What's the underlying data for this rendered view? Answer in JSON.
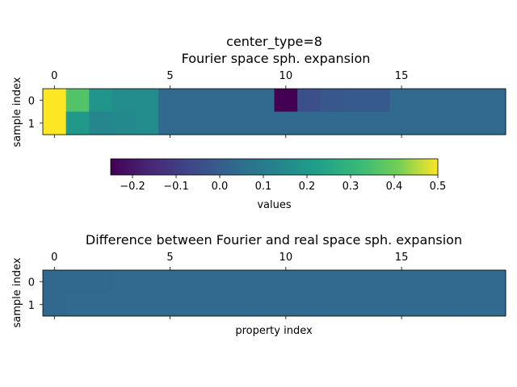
{
  "figure": {
    "title_line1": "center_type=8",
    "title_line2": "Fourier space sph. expansion"
  },
  "chart_data": [
    {
      "type": "heatmap",
      "title": "center_type=8\nFourier space sph. expansion",
      "xlabel": "",
      "ylabel": "sample index",
      "x_tick_labels": [
        "0",
        "5",
        "10",
        "15"
      ],
      "x_ticks": [
        0,
        5,
        10,
        15
      ],
      "y_tick_labels": [
        "0",
        "1"
      ],
      "y_ticks": [
        0,
        1
      ],
      "n_cols": 20,
      "n_rows": 2,
      "values": [
        [
          0.5,
          0.36,
          0.19,
          0.16,
          0.16,
          0.04,
          0.04,
          0.04,
          0.04,
          0.04,
          -0.25,
          -0.04,
          -0.02,
          -0.01,
          -0.01,
          0.04,
          0.04,
          0.04,
          0.04,
          0.04
        ],
        [
          0.5,
          0.2,
          0.14,
          0.15,
          0.16,
          0.04,
          0.04,
          0.04,
          0.04,
          0.04,
          0.04,
          0.04,
          0.04,
          0.04,
          0.04,
          0.04,
          0.04,
          0.04,
          0.04,
          0.04
        ]
      ],
      "colormap": "viridis",
      "vmin": -0.25,
      "vmax": 0.5
    },
    {
      "type": "heatmap",
      "title": "Difference between Fourier and real space sph. expansion",
      "xlabel": "property index",
      "ylabel": "sample index",
      "x_tick_labels": [
        "0",
        "5",
        "10",
        "15"
      ],
      "x_ticks": [
        0,
        5,
        10,
        15
      ],
      "y_tick_labels": [
        "0",
        "1"
      ],
      "y_ticks": [
        0,
        1
      ],
      "n_cols": 20,
      "n_rows": 2,
      "values": [
        [
          0.035,
          0.035,
          0.035,
          0.038,
          0.038,
          0.04,
          0.04,
          0.04,
          0.04,
          0.04,
          0.04,
          0.04,
          0.04,
          0.04,
          0.04,
          0.04,
          0.04,
          0.04,
          0.04,
          0.04
        ],
        [
          0.035,
          0.038,
          0.038,
          0.038,
          0.038,
          0.04,
          0.04,
          0.04,
          0.04,
          0.04,
          0.04,
          0.04,
          0.04,
          0.04,
          0.04,
          0.04,
          0.04,
          0.04,
          0.04,
          0.04
        ]
      ],
      "colormap": "viridis",
      "vmin": -0.25,
      "vmax": 0.5
    }
  ],
  "colorbar": {
    "label": "values",
    "tick_labels": [
      "−0.2",
      "−0.1",
      "0.0",
      "0.1",
      "0.2",
      "0.3",
      "0.4",
      "0.5"
    ],
    "ticks": [
      -0.2,
      -0.1,
      0.0,
      0.1,
      0.2,
      0.3,
      0.4,
      0.5
    ],
    "vmin": -0.25,
    "vmax": 0.5
  }
}
